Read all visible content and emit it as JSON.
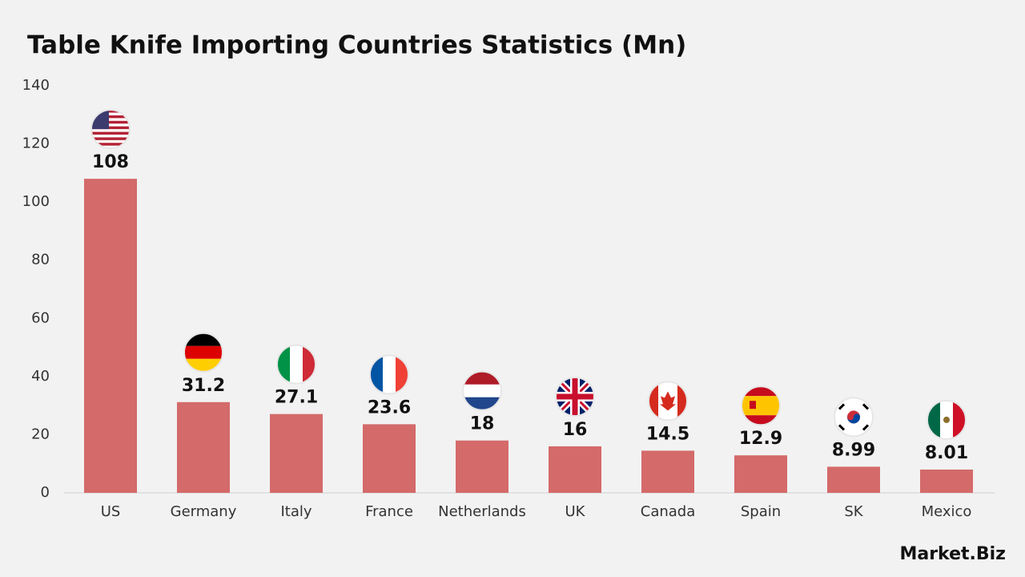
{
  "chart_data": {
    "type": "bar",
    "title": "Table Knife Importing Countries Statistics (Mn)",
    "categories": [
      "US",
      "Germany",
      "Italy",
      "France",
      "Netherlands",
      "UK",
      "Canada",
      "Spain",
      "SK",
      "Mexico"
    ],
    "values": [
      108,
      31.2,
      27.1,
      23.6,
      18,
      16,
      14.5,
      12.9,
      8.99,
      8.01
    ],
    "color": "#d46a6a",
    "ylim": [
      0,
      140
    ],
    "yticks": [
      0,
      20,
      40,
      60,
      80,
      100,
      120,
      140
    ],
    "grid": false
  },
  "brand": "Market.Biz"
}
